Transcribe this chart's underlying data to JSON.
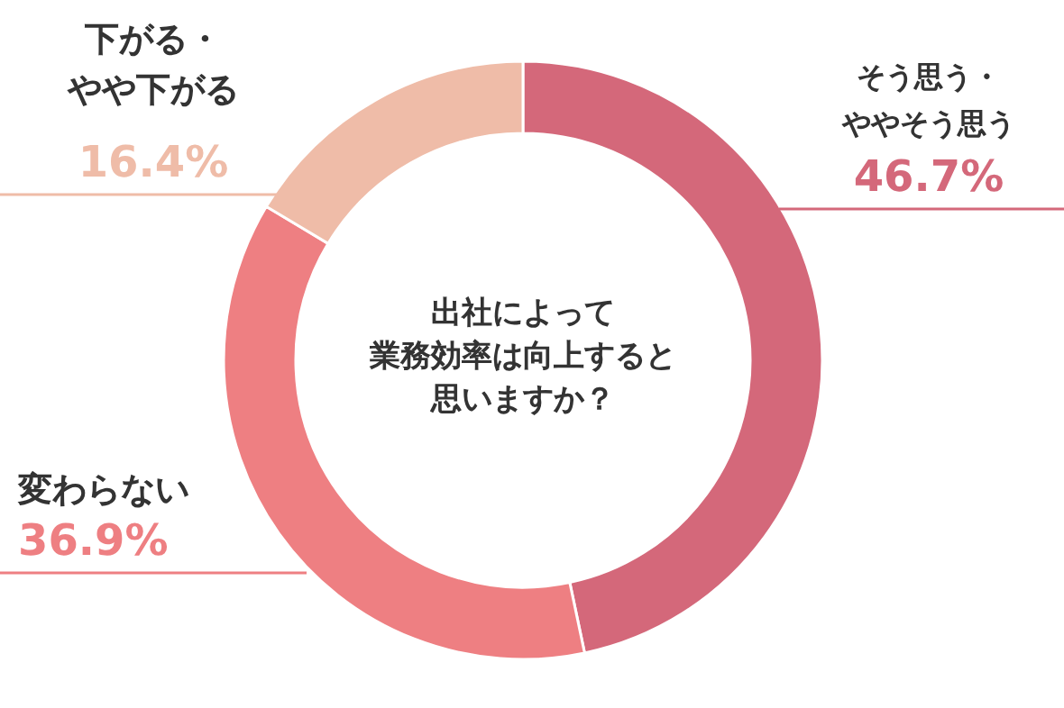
{
  "chart_data": {
    "type": "donut",
    "title": "出社によって業務効率は向上すると思いますか？",
    "categories": [
      "そう思う・ややそう思う",
      "変わらない",
      "下がる・やや下がる"
    ],
    "values": [
      46.7,
      36.9,
      16.4
    ],
    "colors": [
      "#d4687a",
      "#ee7f82",
      "#efbca8"
    ],
    "value_labels": [
      "46.7%",
      "36.9%",
      "16.4%"
    ]
  }
}
